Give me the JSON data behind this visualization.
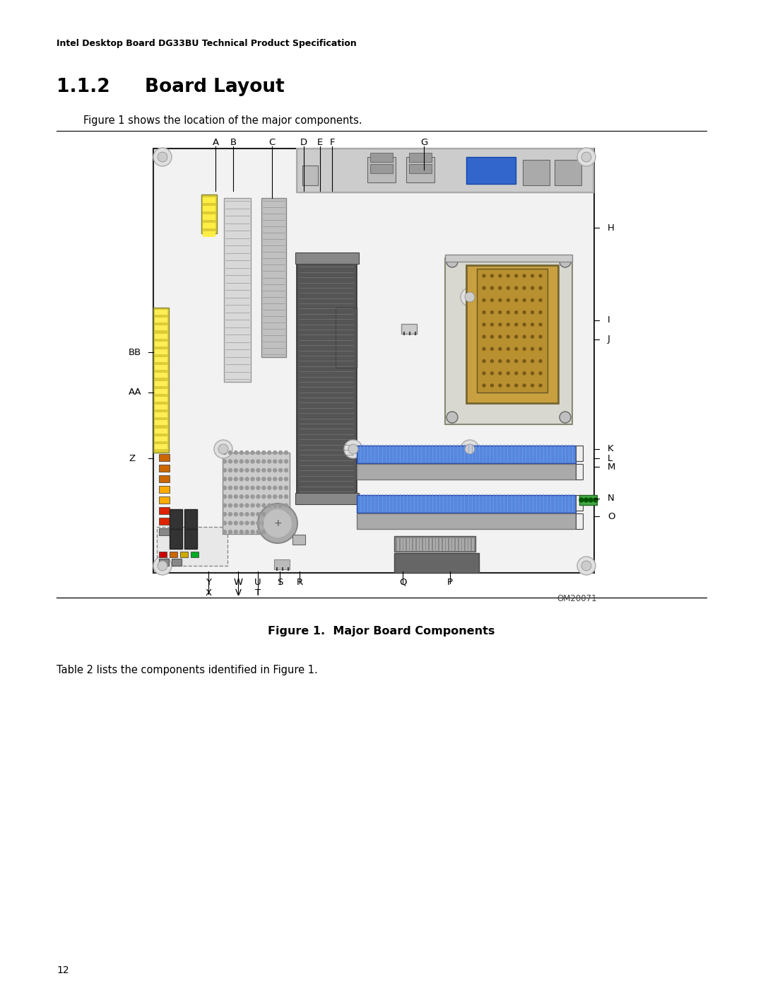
{
  "page_header": "Intel Desktop Board DG33BU Technical Product Specification",
  "section_title": "1.1.2    Board Layout",
  "intro_text": "Figure 1 shows the location of the major components.",
  "figure_caption": "Figure 1.  Major Board Components",
  "figure_id": "OM20071",
  "table_text": "Table 2 lists the components identified in Figure 1.",
  "page_number": "12",
  "background_color": "#ffffff",
  "board_bg": "#f5f5f5",
  "board_border": "#222222"
}
